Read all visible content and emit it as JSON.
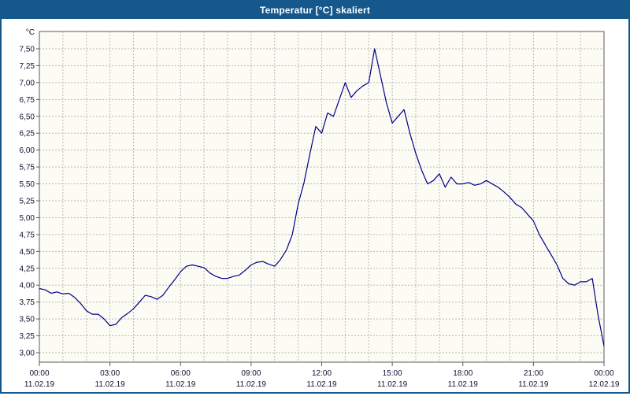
{
  "window": {
    "title": "Temperatur [°C] skaliert"
  },
  "chart_data": {
    "type": "line",
    "title": "Temperatur [°C] skaliert",
    "ylabel": "°C",
    "ylim": [
      3.0,
      7.5
    ],
    "y_tick_step": 0.25,
    "y_ticks": [
      {
        "label": "7,50",
        "value": 7.5
      },
      {
        "label": "7,25",
        "value": 7.25
      },
      {
        "label": "7,00",
        "value": 7.0
      },
      {
        "label": "6,75",
        "value": 6.75
      },
      {
        "label": "6,50",
        "value": 6.5
      },
      {
        "label": "6,25",
        "value": 6.25
      },
      {
        "label": "6,00",
        "value": 6.0
      },
      {
        "label": "5,75",
        "value": 5.75
      },
      {
        "label": "5,50",
        "value": 5.5
      },
      {
        "label": "5,25",
        "value": 5.25
      },
      {
        "label": "5,00",
        "value": 5.0
      },
      {
        "label": "4,75",
        "value": 4.75
      },
      {
        "label": "4,50",
        "value": 4.5
      },
      {
        "label": "4,25",
        "value": 4.25
      },
      {
        "label": "4,00",
        "value": 4.0
      },
      {
        "label": "3,75",
        "value": 3.75
      },
      {
        "label": "3,50",
        "value": 3.5
      },
      {
        "label": "3,25",
        "value": 3.25
      },
      {
        "label": "3,00",
        "value": 3.0
      }
    ],
    "x_ticks": [
      {
        "hour": 0,
        "time": "00:00",
        "date": "11.02.19"
      },
      {
        "hour": 3,
        "time": "03:00",
        "date": "11.02.19"
      },
      {
        "hour": 6,
        "time": "06:00",
        "date": "11.02.19"
      },
      {
        "hour": 9,
        "time": "09:00",
        "date": "11.02.19"
      },
      {
        "hour": 12,
        "time": "12:00",
        "date": "11.02.19"
      },
      {
        "hour": 15,
        "time": "15:00",
        "date": "11.02.19"
      },
      {
        "hour": 18,
        "time": "18:00",
        "date": "11.02.19"
      },
      {
        "hour": 21,
        "time": "21:00",
        "date": "11.02.19"
      },
      {
        "hour": 24,
        "time": "00:00",
        "date": "12.02.19"
      }
    ],
    "x_range_hours": [
      0,
      24
    ],
    "x_step_hours": 0.25,
    "grid": {
      "style": "dashed",
      "vertical_minor_every_hours": 1,
      "on": true
    },
    "legend": "none",
    "line_color": "#00008B",
    "plot_background": "#fcfcf4",
    "grid_color": "#b8b8b8",
    "border_color": "#5a5a5a",
    "values": [
      3.95,
      3.93,
      3.88,
      3.9,
      3.87,
      3.88,
      3.82,
      3.73,
      3.62,
      3.57,
      3.57,
      3.5,
      3.4,
      3.42,
      3.52,
      3.58,
      3.65,
      3.75,
      3.85,
      3.83,
      3.79,
      3.85,
      3.97,
      4.08,
      4.2,
      4.28,
      4.3,
      4.28,
      4.26,
      4.18,
      4.13,
      4.1,
      4.1,
      4.13,
      4.15,
      4.22,
      4.3,
      4.34,
      4.35,
      4.31,
      4.28,
      4.38,
      4.52,
      4.75,
      5.2,
      5.52,
      5.95,
      6.35,
      6.25,
      6.55,
      6.5,
      6.75,
      7.0,
      6.78,
      6.88,
      6.95,
      7.0,
      7.5,
      7.1,
      6.7,
      6.4,
      6.5,
      6.6,
      6.25,
      5.95,
      5.7,
      5.5,
      5.55,
      5.65,
      5.45,
      5.6,
      5.5,
      5.5,
      5.52,
      5.48,
      5.5,
      5.55,
      5.5,
      5.45,
      5.38,
      5.3,
      5.2,
      5.15,
      5.05,
      4.95,
      4.75,
      4.6,
      4.45,
      4.3,
      4.1,
      4.02,
      4.0,
      4.05,
      4.05,
      4.1,
      3.55,
      3.1
    ]
  }
}
